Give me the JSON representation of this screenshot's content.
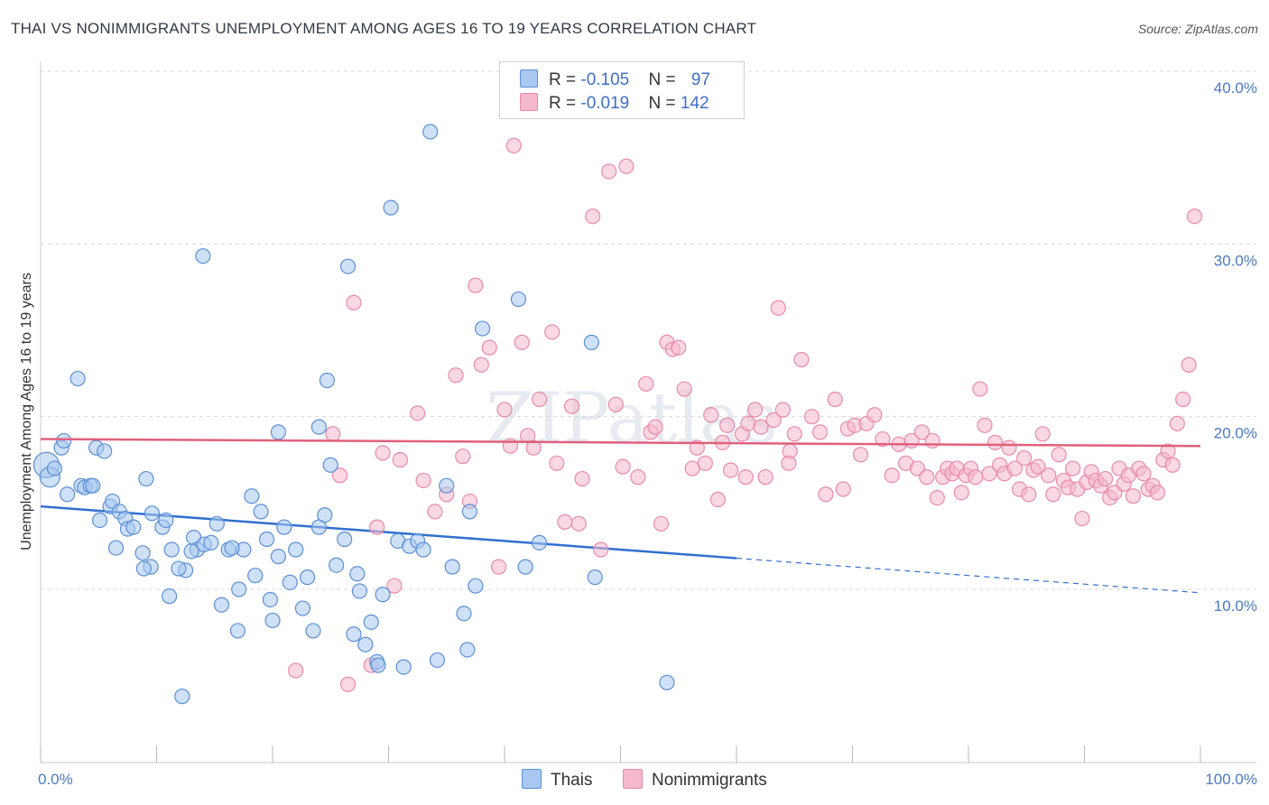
{
  "header": {
    "title": "THAI VS NONIMMIGRANTS UNEMPLOYMENT AMONG AGES 16 TO 19 YEARS CORRELATION CHART",
    "source": "Source: ZipAtlas.com"
  },
  "watermark": "ZIPatlas",
  "legend": {
    "rows": [
      {
        "r_label": "R = ",
        "r_value": "-0.105",
        "n_label": "N = ",
        "n_value": "97",
        "color": "#a8c8f0"
      },
      {
        "r_label": "R = ",
        "r_value": "-0.019",
        "n_label": "N = ",
        "n_value": "142",
        "color": "#f6b8cc"
      }
    ],
    "bottom": [
      {
        "label": "Thais",
        "color": "#a8c8f0"
      },
      {
        "label": "Nonimmigrants",
        "color": "#f6b8cc"
      }
    ]
  },
  "colors": {
    "thais_fill": "#a8c8f0",
    "thais_stroke": "#5b8fd6",
    "thais_line": "#2f6fd0",
    "nonimm_fill": "#f6b8cc",
    "nonimm_stroke": "#e98aa8",
    "nonimm_line": "#e0607e",
    "grid": "#d8d8d8",
    "tick_text": "#4a79c7"
  },
  "chart_data": {
    "type": "scatter",
    "title": "THAI VS NONIMMIGRANTS UNEMPLOYMENT AMONG AGES 16 TO 19 YEARS CORRELATION CHART",
    "xlabel": "",
    "ylabel": "Unemployment Among Ages 16 to 19 years",
    "xlim": [
      0,
      100
    ],
    "ylim": [
      0,
      41.5
    ],
    "x_tick_labels": [
      {
        "value": 0,
        "label": "0.0%"
      },
      {
        "value": 100,
        "label": "100.0%"
      }
    ],
    "y_tick_labels": [
      {
        "value": 10,
        "label": "10.0%"
      },
      {
        "value": 20,
        "label": "20.0%"
      },
      {
        "value": 30,
        "label": "30.0%"
      },
      {
        "value": 40,
        "label": "40.0%"
      }
    ],
    "grid": true,
    "legend_position": "top-center",
    "series": [
      {
        "name": "Thais",
        "trend": {
          "x0": 0,
          "y0": 14.8,
          "x1": 60,
          "y1": 11.8,
          "dashed_to_x": 100,
          "dashed_to_y": 9.8
        },
        "points": [
          [
            0.5,
            17.2,
            3
          ],
          [
            0.8,
            16.5,
            2
          ],
          [
            1.2,
            17.0,
            1
          ],
          [
            1.8,
            18.2,
            1
          ],
          [
            2.0,
            18.6,
            1
          ],
          [
            3.2,
            22.2,
            1
          ],
          [
            2.3,
            15.5,
            1
          ],
          [
            3.5,
            16.0,
            1
          ],
          [
            3.8,
            15.9,
            1
          ],
          [
            4.3,
            16.0,
            1
          ],
          [
            4.8,
            18.2,
            1
          ],
          [
            5.5,
            18.0,
            1
          ],
          [
            6.0,
            14.8,
            1
          ],
          [
            6.2,
            15.1,
            1
          ],
          [
            6.8,
            14.5,
            1
          ],
          [
            5.1,
            14.0,
            1
          ],
          [
            7.3,
            14.1,
            1
          ],
          [
            7.5,
            13.5,
            1
          ],
          [
            8.0,
            13.6,
            1
          ],
          [
            6.5,
            12.4,
            1
          ],
          [
            8.8,
            12.1,
            1
          ],
          [
            9.1,
            16.4,
            1
          ],
          [
            9.6,
            14.4,
            1
          ],
          [
            10.5,
            13.6,
            1
          ],
          [
            10.8,
            14.0,
            1
          ],
          [
            11.3,
            12.3,
            1
          ],
          [
            12.5,
            11.1,
            1
          ],
          [
            13.2,
            13.0,
            1
          ],
          [
            13.5,
            12.3,
            1
          ],
          [
            14.1,
            12.6,
            1
          ],
          [
            14.7,
            12.7,
            1
          ],
          [
            15.2,
            13.8,
            1
          ],
          [
            15.6,
            9.1,
            1
          ],
          [
            16.2,
            12.3,
            1
          ],
          [
            17.1,
            10.0,
            1
          ],
          [
            17.5,
            12.3,
            1
          ],
          [
            18.2,
            15.4,
            1
          ],
          [
            18.5,
            10.8,
            1
          ],
          [
            19.0,
            14.5,
            1
          ],
          [
            19.5,
            12.9,
            1
          ],
          [
            20.0,
            8.2,
            1
          ],
          [
            20.5,
            11.9,
            1
          ],
          [
            21.0,
            13.6,
            1
          ],
          [
            21.5,
            10.4,
            1
          ],
          [
            22.0,
            12.3,
            1
          ],
          [
            22.6,
            8.9,
            1
          ],
          [
            23.0,
            10.7,
            1
          ],
          [
            23.5,
            7.6,
            1
          ],
          [
            24.0,
            13.6,
            1
          ],
          [
            24.5,
            14.3,
            1
          ],
          [
            25.0,
            17.2,
            1
          ],
          [
            25.5,
            11.4,
            1
          ],
          [
            26.2,
            12.9,
            1
          ],
          [
            26.5,
            28.7,
            1
          ],
          [
            27.0,
            7.4,
            1
          ],
          [
            27.5,
            9.9,
            1
          ],
          [
            28.0,
            6.8,
            1
          ],
          [
            28.5,
            8.1,
            1
          ],
          [
            29.0,
            5.8,
            1
          ],
          [
            29.5,
            9.7,
            1
          ],
          [
            30.2,
            32.1,
            1
          ],
          [
            30.8,
            12.8,
            1
          ],
          [
            31.3,
            5.5,
            1
          ],
          [
            31.8,
            12.5,
            1
          ],
          [
            32.5,
            12.8,
            1
          ],
          [
            33.0,
            12.3,
            1
          ],
          [
            33.6,
            36.5,
            1
          ],
          [
            34.2,
            5.9,
            1
          ],
          [
            35.0,
            16.0,
            1
          ],
          [
            35.5,
            11.3,
            1
          ],
          [
            36.5,
            8.6,
            1
          ],
          [
            36.8,
            6.5,
            1
          ],
          [
            37.5,
            10.2,
            1
          ],
          [
            38.1,
            25.1,
            1
          ],
          [
            37.0,
            14.5,
            1
          ],
          [
            41.2,
            26.8,
            1
          ],
          [
            41.8,
            11.3,
            1
          ],
          [
            43.0,
            12.7,
            1
          ],
          [
            47.5,
            24.3,
            1
          ],
          [
            47.8,
            10.7,
            1
          ],
          [
            54.0,
            4.6,
            1
          ],
          [
            11.1,
            9.6,
            1
          ],
          [
            12.2,
            3.8,
            1
          ],
          [
            14.0,
            29.3,
            1
          ],
          [
            17.0,
            7.6,
            1
          ],
          [
            20.5,
            19.1,
            1
          ],
          [
            24.0,
            19.4,
            1
          ],
          [
            24.7,
            22.1,
            1
          ],
          [
            9.5,
            11.3,
            1
          ],
          [
            8.9,
            11.2,
            1
          ],
          [
            11.9,
            11.2,
            1
          ],
          [
            13.0,
            12.2,
            1
          ],
          [
            16.5,
            12.4,
            1
          ],
          [
            19.8,
            9.4,
            1
          ],
          [
            4.5,
            16.0,
            1
          ],
          [
            27.3,
            10.9,
            1
          ],
          [
            29.1,
            5.6,
            1
          ]
        ]
      },
      {
        "name": "Nonimmigrants",
        "trend": {
          "x0": 0,
          "y0": 18.7,
          "x1": 100,
          "y1": 18.3
        },
        "points": [
          [
            22.0,
            5.3
          ],
          [
            25.2,
            19.0
          ],
          [
            25.8,
            16.6
          ],
          [
            26.5,
            4.5
          ],
          [
            27.0,
            26.6
          ],
          [
            28.5,
            5.6
          ],
          [
            29.0,
            13.6
          ],
          [
            29.5,
            17.9
          ],
          [
            30.5,
            10.2
          ],
          [
            31.0,
            17.5
          ],
          [
            32.5,
            20.2
          ],
          [
            33.0,
            16.3
          ],
          [
            34.0,
            14.5
          ],
          [
            35.0,
            15.5
          ],
          [
            35.8,
            22.4
          ],
          [
            36.4,
            17.7
          ],
          [
            37.0,
            15.1
          ],
          [
            37.5,
            27.6
          ],
          [
            38.0,
            23.0
          ],
          [
            38.7,
            24.0
          ],
          [
            39.5,
            11.3
          ],
          [
            40.0,
            20.4
          ],
          [
            40.5,
            18.3
          ],
          [
            40.8,
            35.7
          ],
          [
            41.5,
            24.3
          ],
          [
            42.0,
            18.9
          ],
          [
            42.5,
            18.2
          ],
          [
            43.0,
            21.0
          ],
          [
            44.1,
            24.9
          ],
          [
            44.5,
            17.3
          ],
          [
            45.2,
            13.9
          ],
          [
            45.8,
            20.6
          ],
          [
            46.4,
            13.8
          ],
          [
            46.7,
            16.4
          ],
          [
            47.6,
            31.6
          ],
          [
            48.3,
            12.3
          ],
          [
            49.0,
            34.2
          ],
          [
            49.6,
            20.7
          ],
          [
            50.2,
            17.1
          ],
          [
            50.5,
            34.5
          ],
          [
            51.5,
            16.5
          ],
          [
            52.2,
            21.9
          ],
          [
            52.6,
            19.1
          ],
          [
            53.0,
            19.4
          ],
          [
            53.5,
            13.8
          ],
          [
            54.0,
            24.3
          ],
          [
            54.5,
            23.9
          ],
          [
            55.0,
            24.0
          ],
          [
            55.5,
            21.6
          ],
          [
            56.2,
            17.0
          ],
          [
            56.6,
            18.2
          ],
          [
            57.3,
            17.3
          ],
          [
            57.8,
            20.1
          ],
          [
            58.4,
            15.2
          ],
          [
            58.8,
            18.5
          ],
          [
            59.2,
            19.5
          ],
          [
            59.5,
            16.9
          ],
          [
            60.5,
            19.0
          ],
          [
            61.0,
            19.6
          ],
          [
            61.6,
            20.4
          ],
          [
            62.1,
            19.4
          ],
          [
            62.5,
            16.5
          ],
          [
            63.2,
            19.8
          ],
          [
            63.6,
            26.3
          ],
          [
            64.0,
            20.4
          ],
          [
            64.6,
            18.0
          ],
          [
            65.0,
            19.0
          ],
          [
            65.6,
            23.3
          ],
          [
            66.5,
            20.0
          ],
          [
            67.2,
            19.1
          ],
          [
            67.7,
            15.5
          ],
          [
            68.5,
            21.0
          ],
          [
            69.2,
            15.8
          ],
          [
            69.6,
            19.3
          ],
          [
            70.2,
            19.5
          ],
          [
            70.7,
            17.8
          ],
          [
            71.2,
            19.6
          ],
          [
            71.9,
            20.1
          ],
          [
            72.6,
            18.7
          ],
          [
            73.4,
            16.6
          ],
          [
            74.0,
            18.4
          ],
          [
            74.6,
            17.3
          ],
          [
            75.1,
            18.6
          ],
          [
            75.6,
            17.0
          ],
          [
            76.0,
            19.1
          ],
          [
            76.4,
            16.5
          ],
          [
            76.9,
            18.6
          ],
          [
            77.3,
            15.3
          ],
          [
            77.8,
            16.5
          ],
          [
            78.2,
            17.0
          ],
          [
            78.6,
            16.7
          ],
          [
            79.0,
            17.0
          ],
          [
            79.4,
            15.6
          ],
          [
            79.8,
            16.6
          ],
          [
            80.2,
            17.0
          ],
          [
            80.6,
            16.5
          ],
          [
            81.0,
            21.6
          ],
          [
            81.4,
            19.5
          ],
          [
            81.8,
            16.7
          ],
          [
            82.3,
            18.5
          ],
          [
            82.7,
            17.2
          ],
          [
            83.1,
            16.7
          ],
          [
            83.5,
            18.2
          ],
          [
            84.0,
            17.0
          ],
          [
            84.4,
            15.8
          ],
          [
            84.8,
            17.6
          ],
          [
            85.2,
            15.5
          ],
          [
            85.6,
            16.9
          ],
          [
            86.0,
            17.1
          ],
          [
            86.4,
            19.0
          ],
          [
            86.9,
            16.6
          ],
          [
            87.3,
            15.5
          ],
          [
            87.8,
            17.8
          ],
          [
            88.2,
            16.3
          ],
          [
            88.6,
            15.9
          ],
          [
            89.0,
            17.0
          ],
          [
            89.4,
            15.8
          ],
          [
            89.8,
            14.1
          ],
          [
            90.2,
            16.2
          ],
          [
            90.6,
            16.8
          ],
          [
            91.0,
            16.3
          ],
          [
            91.4,
            16.0
          ],
          [
            91.8,
            16.4
          ],
          [
            92.2,
            15.3
          ],
          [
            92.6,
            15.6
          ],
          [
            93.0,
            17.0
          ],
          [
            93.4,
            16.1
          ],
          [
            93.8,
            16.6
          ],
          [
            94.2,
            15.4
          ],
          [
            94.7,
            17.0
          ],
          [
            95.1,
            16.7
          ],
          [
            95.5,
            15.8
          ],
          [
            95.9,
            16.0
          ],
          [
            96.3,
            15.6
          ],
          [
            96.8,
            17.5
          ],
          [
            97.2,
            18.0
          ],
          [
            97.6,
            17.2
          ],
          [
            98.0,
            19.6
          ],
          [
            98.5,
            21.0
          ],
          [
            99.0,
            23.0
          ],
          [
            99.5,
            31.6
          ],
          [
            60.8,
            16.5
          ],
          [
            64.5,
            17.3
          ]
        ]
      }
    ]
  }
}
